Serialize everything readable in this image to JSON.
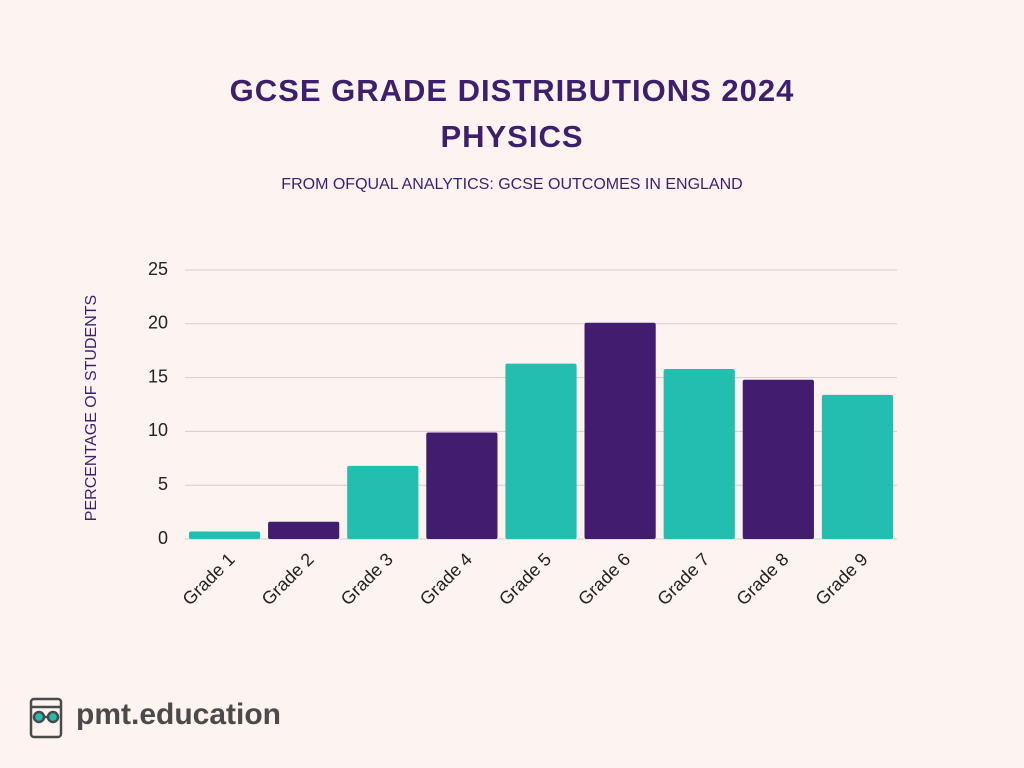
{
  "chart_data": {
    "type": "bar",
    "title": "GCSE GRADE DISTRIBUTIONS 2024 PHYSICS",
    "subtitle": "FROM OFQUAL ANALYTICS: GCSE OUTCOMES IN ENGLAND",
    "ylabel": "PERCENTAGE OF STUDENTS",
    "categories": [
      "Grade 1",
      "Grade 2",
      "Grade 3",
      "Grade 4",
      "Grade 5",
      "Grade 6",
      "Grade 7",
      "Grade 8",
      "Grade 9"
    ],
    "values": [
      0.7,
      1.6,
      6.8,
      9.9,
      16.3,
      20.1,
      15.8,
      14.8,
      13.4
    ],
    "colors": [
      "#22bfb1",
      "#421c6f",
      "#22bfb1",
      "#421c6f",
      "#22bfb1",
      "#421c6f",
      "#22bfb1",
      "#421c6f",
      "#22bfb1"
    ],
    "ylim": [
      0,
      25
    ],
    "yticks": [
      0,
      5,
      10,
      15,
      20,
      25
    ],
    "grid": true
  },
  "brand": "pmt.education"
}
